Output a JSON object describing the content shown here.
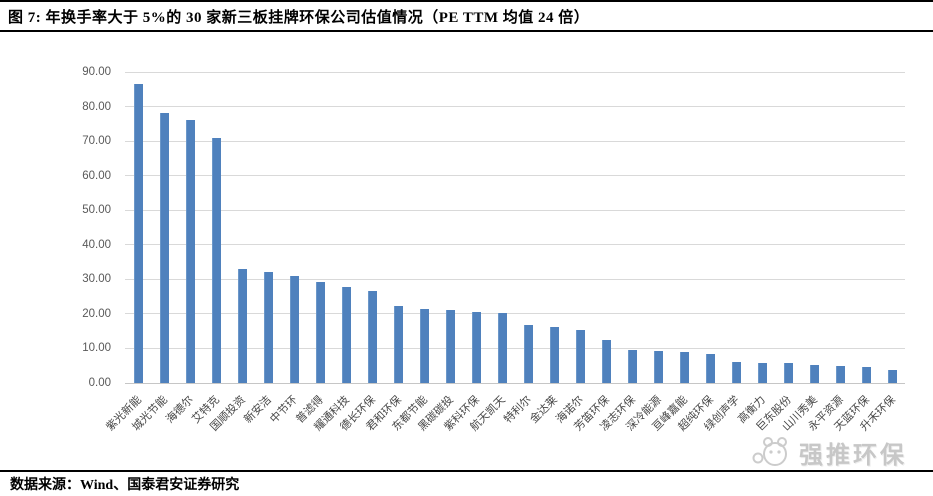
{
  "header": {
    "title": "图 7:  年换手率大于 5%的 30 家新三板挂牌环保公司估值情况（PE TTM 均值 24 倍）"
  },
  "watermark": {
    "icon": "panda-logo-icon",
    "text": "强推环保"
  },
  "footer": {
    "source": "数据来源：Wind、国泰君安证券研究"
  },
  "chart_data": {
    "type": "bar",
    "title": "年换手率大于 5%的 30 家新三板挂牌环保公司估值情况（PE TTM 均值 24 倍）",
    "categories": [
      "紫光新能",
      "城光节能",
      "海德尔",
      "艾特克",
      "国顺投资",
      "新安洁",
      "中节环",
      "普滤得",
      "耀通科技",
      "德长环保",
      "君和环保",
      "东都节能",
      "黑碳碳投",
      "紫科环保",
      "航天凯天",
      "特利尔",
      "金达莱",
      "海诺尔",
      "芳笛环保",
      "凌志环保",
      "深冷能源",
      "亘峰嘉能",
      "超纯环保",
      "绿创声学",
      "高衡力",
      "巨东股份",
      "山川秀美",
      "永平资源",
      "天蓝环保",
      "升禾环保"
    ],
    "values": [
      86.5,
      78.2,
      76.2,
      70.8,
      33.0,
      32.2,
      31.0,
      29.3,
      27.8,
      26.6,
      22.4,
      21.5,
      21.0,
      20.6,
      20.2,
      16.7,
      16.2,
      15.4,
      12.3,
      9.6,
      9.2,
      9.0,
      8.4,
      6.2,
      5.9,
      5.8,
      5.3,
      4.9,
      4.6,
      3.7
    ],
    "xlabel": "",
    "ylabel": "",
    "ylim": [
      0,
      90
    ],
    "ytick_step": 10,
    "ytick_format": "two-decimals",
    "bar_color": "#4f81bd",
    "grid": true,
    "legend": "none"
  }
}
